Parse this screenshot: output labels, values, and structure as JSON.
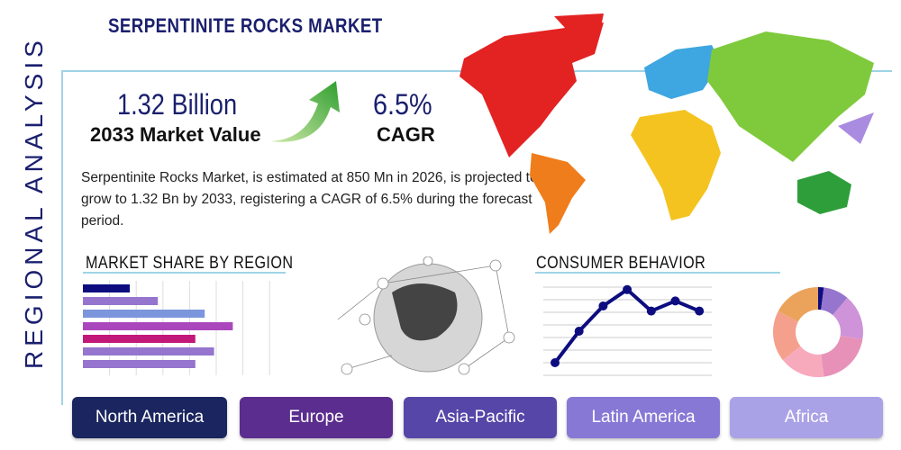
{
  "title": "SERPENTINITE ROCKS MARKET",
  "side_label": "REGIONAL ANALYSIS",
  "kpi": {
    "market_value": "1.32 Billion",
    "market_value_label": "2033 Market Value",
    "cagr": "6.5%",
    "cagr_label": "CAGR"
  },
  "description": "Serpentinite Rocks Market, is estimated at 850 Mn in 2026, is projected to grow to 1.32 Bn by 2033, registering a CAGR of 6.5% during the forecast period.",
  "sections": {
    "market_share": "MARKET SHARE BY REGION",
    "consumer": "CONSUMER BEHAVIOR"
  },
  "regions": [
    {
      "label": "North America",
      "color": "#1b2660"
    },
    {
      "label": "Europe",
      "color": "#5b2d8e"
    },
    {
      "label": "Asia-Pacific",
      "color": "#5546a8"
    },
    {
      "label": "Latin America",
      "color": "#8878d6"
    },
    {
      "label": "Africa",
      "color": "#aaa2e6"
    }
  ],
  "chart_data": [
    {
      "type": "bar",
      "orientation": "horizontal",
      "values": [
        2,
        3.2,
        5.2,
        6.4,
        4.8,
        5.6,
        4.8
      ],
      "colors": [
        "#0d0d80",
        "#9575cd",
        "#7b96dc",
        "#ab47bc",
        "#c2187a",
        "#9575cd",
        "#9575cd"
      ],
      "xlim": [
        0,
        8
      ],
      "grid": true
    },
    {
      "type": "line",
      "values": [
        1,
        3.5,
        5.5,
        6.8,
        5.1,
        5.9,
        5.1
      ],
      "color": "#0d0d80",
      "ylim": [
        0,
        7.5
      ],
      "grid": true
    },
    {
      "type": "pie",
      "donut": true,
      "values": [
        2,
        9,
        16,
        20,
        16,
        18,
        17
      ],
      "colors": [
        "#0d0d80",
        "#9575cd",
        "#ce93d8",
        "#e891b8",
        "#f8aabd",
        "#f4a08c",
        "#eba35c"
      ]
    }
  ]
}
